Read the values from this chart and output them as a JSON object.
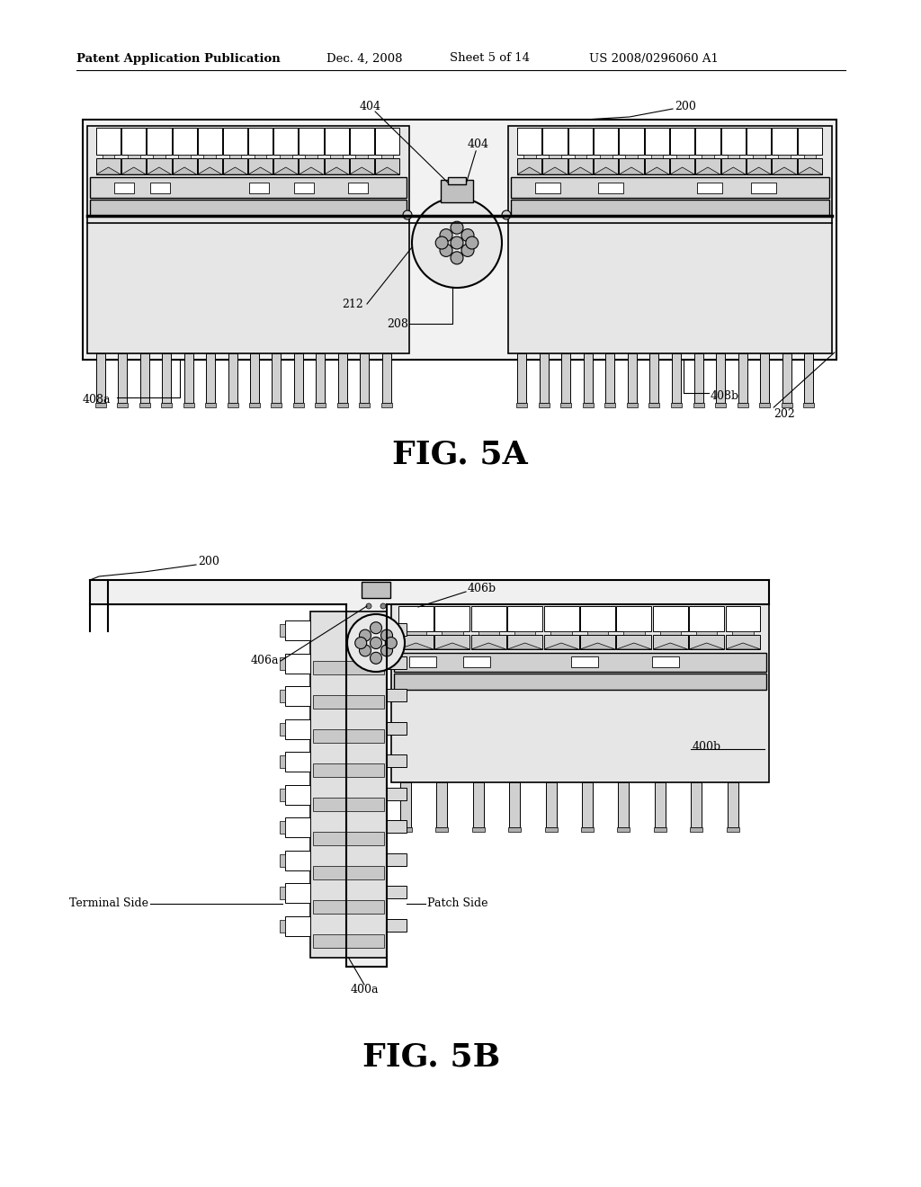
{
  "bg_color": "#ffffff",
  "line_color": "#000000",
  "header_text": "Patent Application Publication",
  "header_date": "Dec. 4, 2008",
  "header_sheet": "Sheet 5 of 14",
  "header_patent": "US 2008/0296060 A1",
  "fig5a_label": "FIG. 5A",
  "fig5b_label": "FIG. 5B"
}
